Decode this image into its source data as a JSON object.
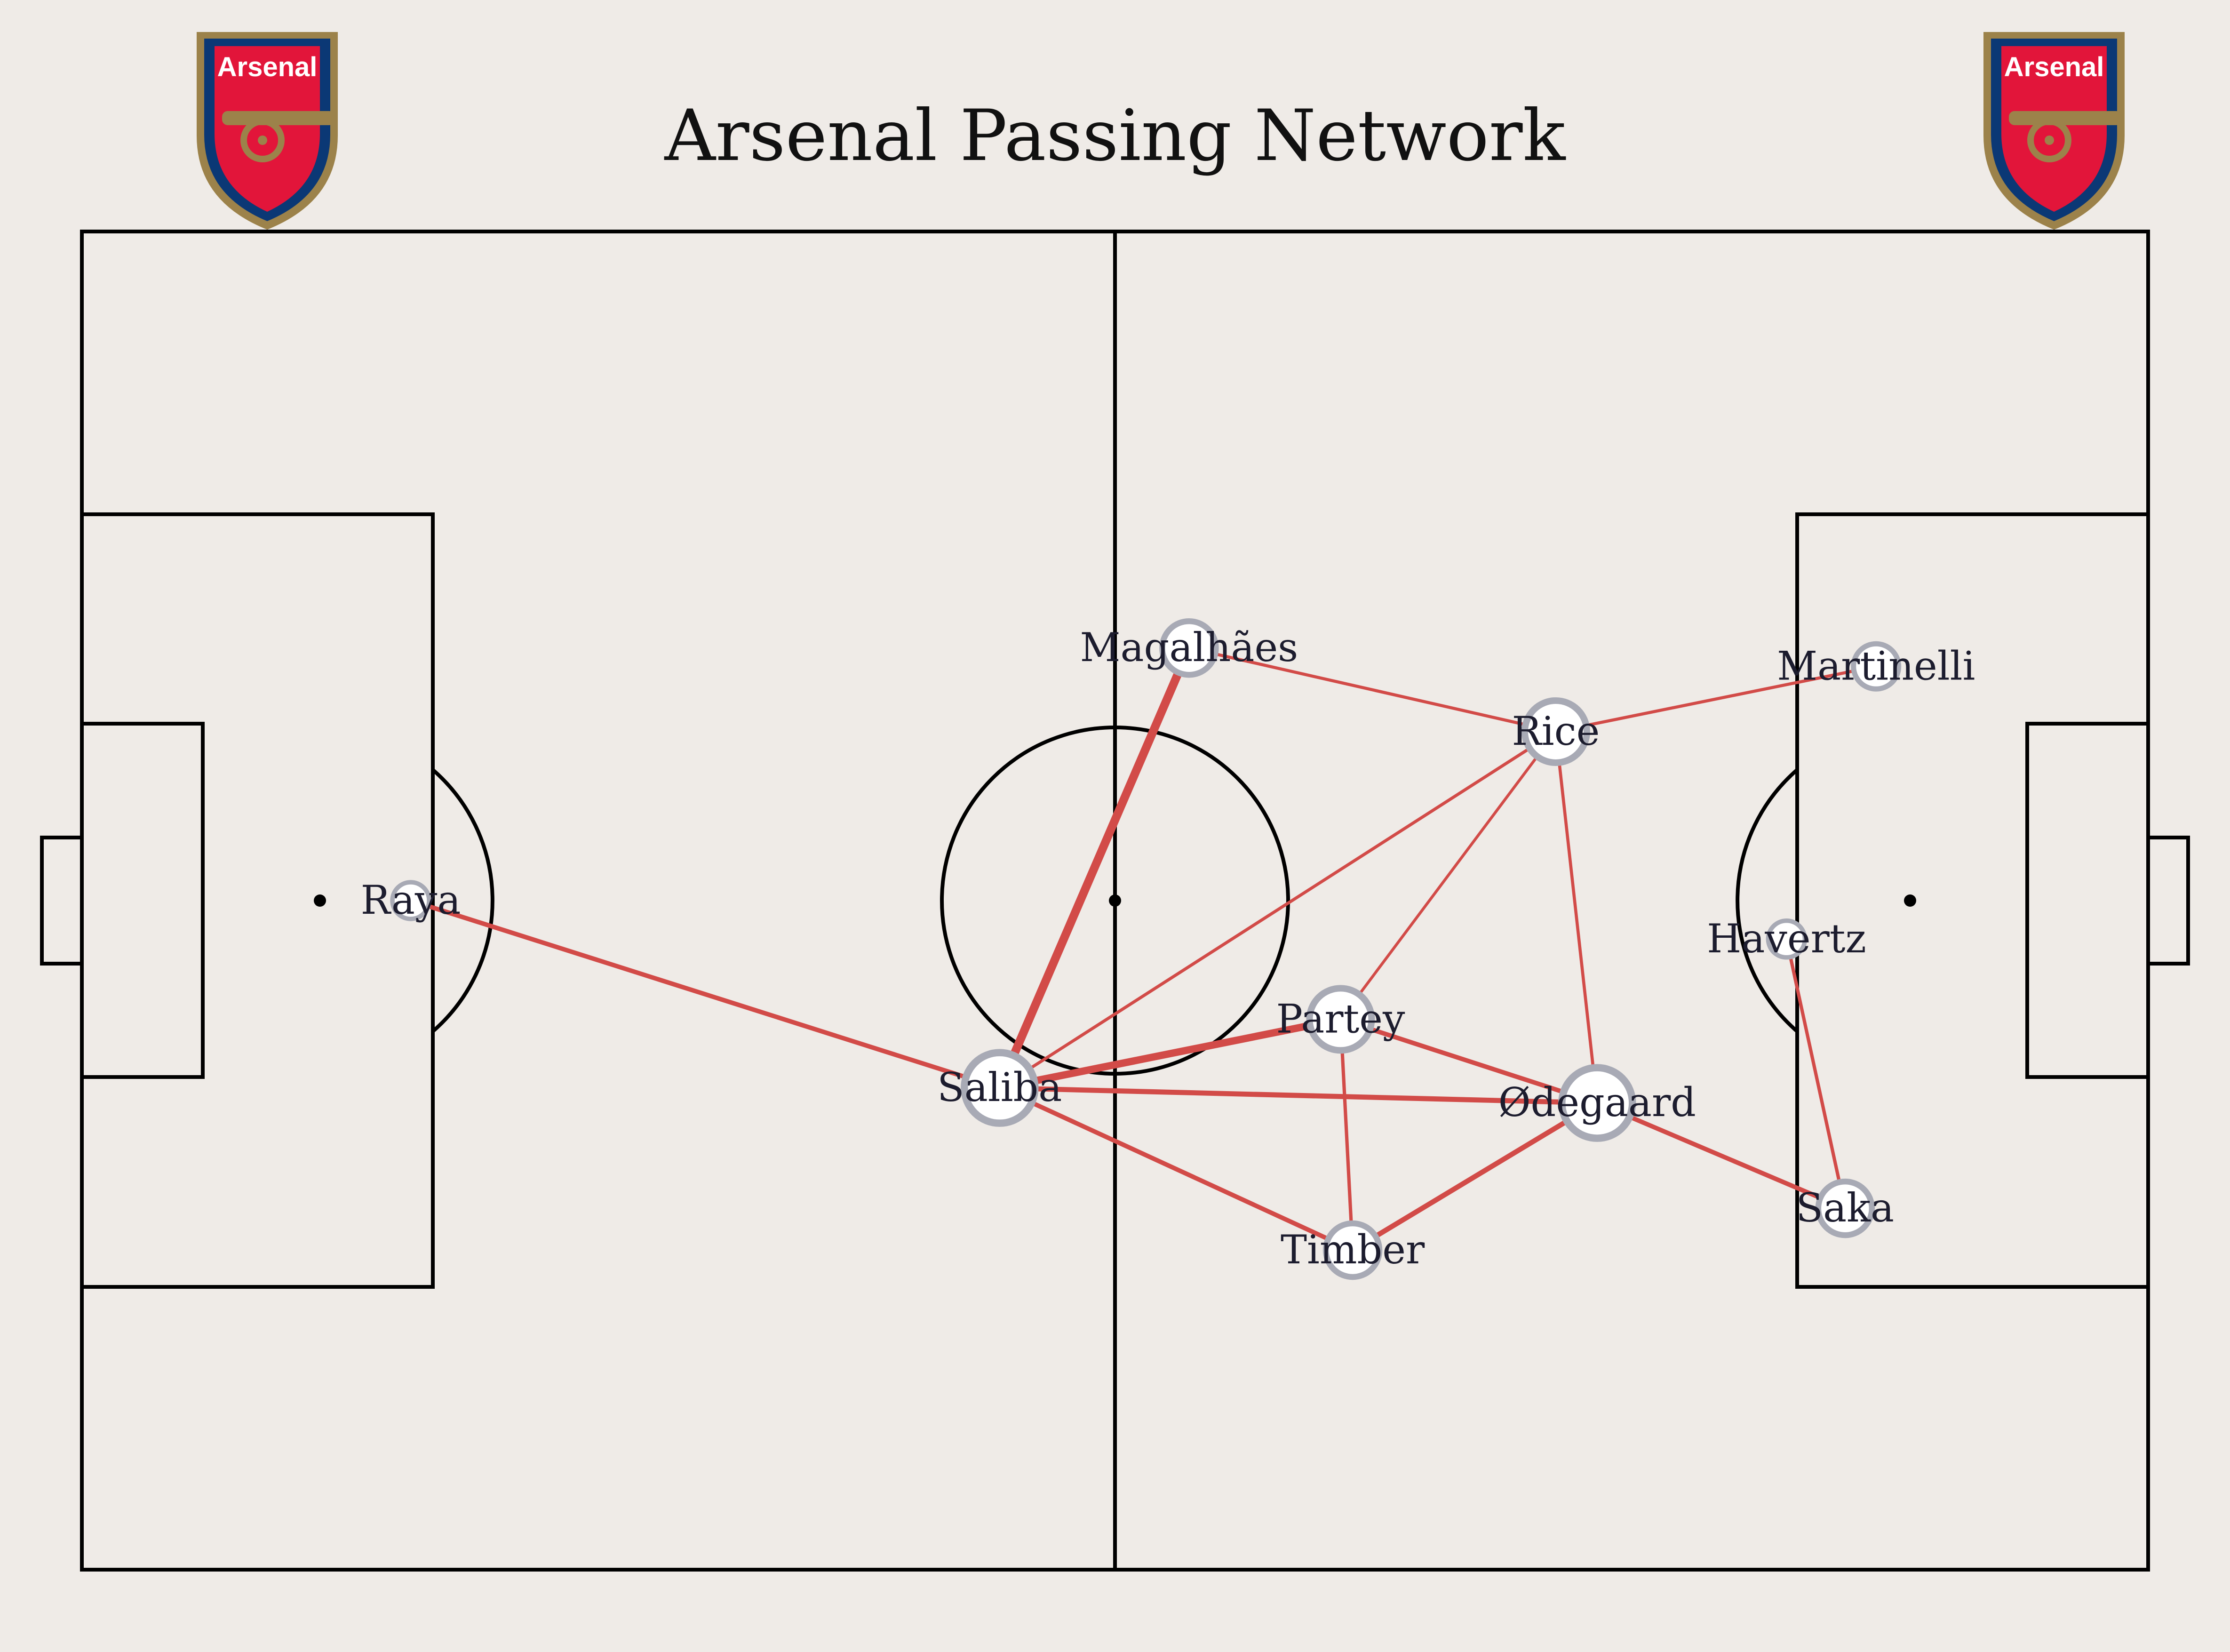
{
  "title": "Arsenal Passing Network",
  "crest": {
    "text": "Arsenal",
    "red": "#e2153a",
    "navy": "#0b3875",
    "gold": "#9c824a"
  },
  "colors": {
    "background": "#efebe7",
    "pass": "#d24b48",
    "node_edge": "#a8aab5",
    "line": "#000000"
  },
  "pitch": {
    "length": 120,
    "width": 80
  },
  "players": [
    {
      "id": "raya",
      "name": "Raya",
      "x": 19.1,
      "y": 40.0,
      "size": 1
    },
    {
      "id": "saliba",
      "name": "Saliba",
      "x": 53.3,
      "y": 28.8,
      "size": 5
    },
    {
      "id": "magalhaes",
      "name": "Magalhães",
      "x": 64.3,
      "y": 55.1,
      "size": 3
    },
    {
      "id": "rice",
      "name": "Rice",
      "x": 85.6,
      "y": 50.1,
      "size": 4
    },
    {
      "id": "martinelli",
      "name": "Martinelli",
      "x": 104.2,
      "y": 54.0,
      "size": 2
    },
    {
      "id": "havertz",
      "name": "Havertz",
      "x": 99.0,
      "y": 37.7,
      "size": 1
    },
    {
      "id": "partey",
      "name": "Partey",
      "x": 73.1,
      "y": 32.9,
      "size": 4
    },
    {
      "id": "odegaard",
      "name": "Ødegaard",
      "x": 88.0,
      "y": 27.9,
      "size": 5
    },
    {
      "id": "saka",
      "name": "Saka",
      "x": 102.4,
      "y": 21.6,
      "size": 3
    },
    {
      "id": "timber",
      "name": "Timber",
      "x": 73.8,
      "y": 19.1,
      "size": 3
    }
  ],
  "passes": [
    {
      "from": "saliba",
      "to": "magalhaes",
      "width": 3
    },
    {
      "from": "saliba",
      "to": "raya",
      "width": 1.6
    },
    {
      "from": "saliba",
      "to": "partey",
      "width": 2.6
    },
    {
      "from": "saliba",
      "to": "odegaard",
      "width": 1.8
    },
    {
      "from": "saliba",
      "to": "timber",
      "width": 1.6
    },
    {
      "from": "saliba",
      "to": "rice",
      "width": 1.1
    },
    {
      "from": "magalhaes",
      "to": "rice",
      "width": 1.1
    },
    {
      "from": "rice",
      "to": "martinelli",
      "width": 1.1
    },
    {
      "from": "rice",
      "to": "partey",
      "width": 1
    },
    {
      "from": "rice",
      "to": "odegaard",
      "width": 1.1
    },
    {
      "from": "partey",
      "to": "odegaard",
      "width": 1.6
    },
    {
      "from": "partey",
      "to": "timber",
      "width": 1.2
    },
    {
      "from": "timber",
      "to": "odegaard",
      "width": 1.8
    },
    {
      "from": "odegaard",
      "to": "saka",
      "width": 1.6
    },
    {
      "from": "havertz",
      "to": "saka",
      "width": 1.2
    }
  ]
}
